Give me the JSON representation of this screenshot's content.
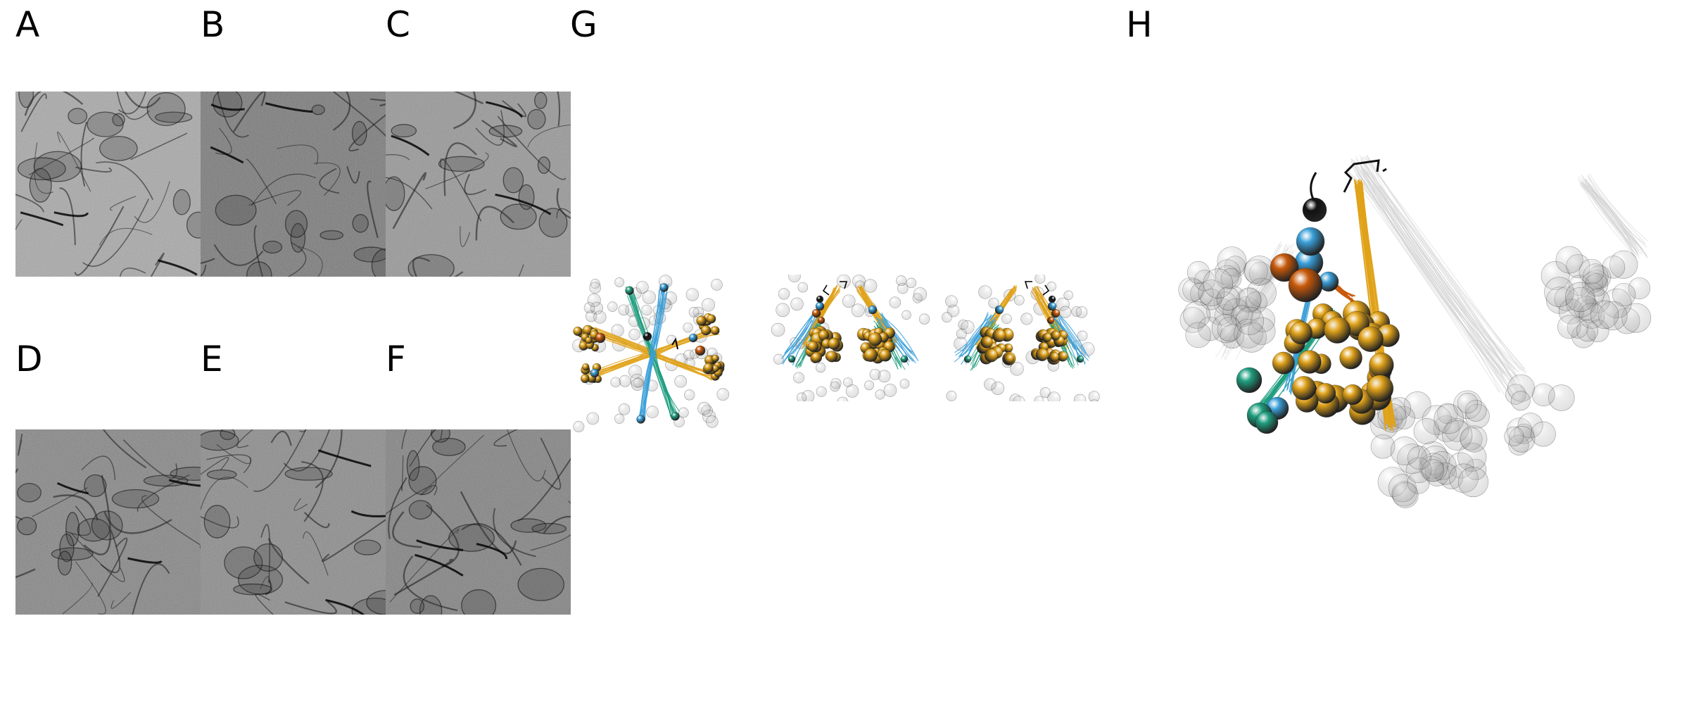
{
  "figure": {
    "panels": [
      {
        "label": "A"
      },
      {
        "label": "B"
      },
      {
        "label": "C"
      },
      {
        "label": "D"
      },
      {
        "label": "E"
      },
      {
        "label": "F"
      },
      {
        "label": "G"
      },
      {
        "label": "H"
      }
    ],
    "colors": {
      "gold": "#e0a21a",
      "orange": "#c8590a",
      "sky_blue": "#3a9fd8",
      "teal": "#1f9e7f",
      "black": "#111111",
      "ghost_grey": "#bdbdbd"
    },
    "em_images": {
      "row1": [
        "A",
        "B",
        "C"
      ],
      "row2": [
        "D",
        "E",
        "F"
      ],
      "description_icon": "grayscale-electron-micrograph"
    }
  }
}
